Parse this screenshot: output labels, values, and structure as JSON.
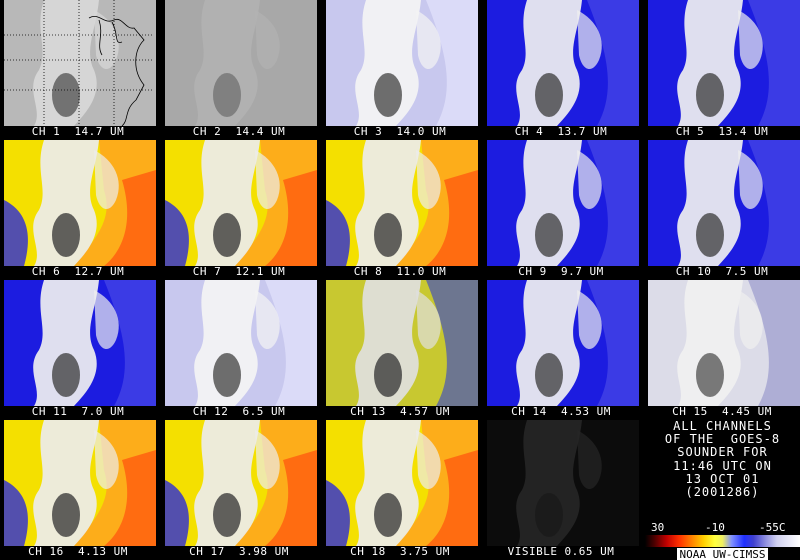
{
  "tiles": [
    {
      "caption": "CH 1  14.7 UM",
      "style": "map"
    },
    {
      "caption": "CH 2  14.4 UM",
      "style": "gray"
    },
    {
      "caption": "CH 3  14.0 UM",
      "style": "paleblue"
    },
    {
      "caption": "CH 4  13.7 UM",
      "style": "blue"
    },
    {
      "caption": "CH 5  13.4 UM",
      "style": "blue"
    },
    {
      "caption": "CH 6  12.7 UM",
      "style": "warm"
    },
    {
      "caption": "CH 7  12.1 UM",
      "style": "warm"
    },
    {
      "caption": "CH 8  11.0 UM",
      "style": "warm"
    },
    {
      "caption": "CH 9  9.7 UM",
      "style": "blue"
    },
    {
      "caption": "CH 10  7.5 UM",
      "style": "blue"
    },
    {
      "caption": "CH 11  7.0 UM",
      "style": "blue"
    },
    {
      "caption": "CH 12  6.5 UM",
      "style": "paleblue"
    },
    {
      "caption": "CH 13  4.57 UM",
      "style": "mixed"
    },
    {
      "caption": "CH 14  4.53 UM",
      "style": "blue"
    },
    {
      "caption": "CH 15  4.45 UM",
      "style": "noisy"
    },
    {
      "caption": "CH 16  4.13 UM",
      "style": "warm"
    },
    {
      "caption": "CH 17  3.98 UM",
      "style": "warm"
    },
    {
      "caption": "CH 18  3.75 UM",
      "style": "warm"
    },
    {
      "caption": "VISIBLE 0.65 UM",
      "style": "dark"
    }
  ],
  "info": {
    "lines": [
      "ALL CHANNELS",
      "OF THE  GOES-8",
      "SOUNDER FOR",
      "11:46 UTC ON",
      "13 OCT 01",
      "(2001286)"
    ],
    "scale_labels": [
      "30",
      "-10",
      "-55C"
    ],
    "credit": "NOAA UW-CIMSS"
  }
}
